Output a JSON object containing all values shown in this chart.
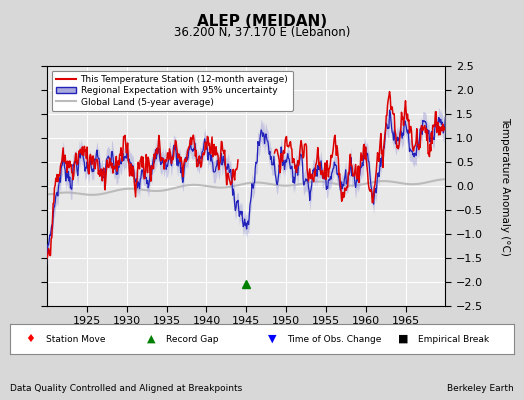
{
  "title": "ALEP (MEIDAN)",
  "subtitle": "36.200 N, 37.170 E (Lebanon)",
  "ylabel": "Temperature Anomaly (°C)",
  "footer_left": "Data Quality Controlled and Aligned at Breakpoints",
  "footer_right": "Berkeley Earth",
  "xlim": [
    1920,
    1970
  ],
  "ylim": [
    -2.5,
    2.5
  ],
  "yticks": [
    -2.5,
    -2,
    -1.5,
    -1,
    -0.5,
    0,
    0.5,
    1,
    1.5,
    2,
    2.5
  ],
  "xticks": [
    1925,
    1930,
    1935,
    1940,
    1945,
    1950,
    1955,
    1960,
    1965
  ],
  "bg_color": "#d8d8d8",
  "plot_bg_color": "#e8e8e8",
  "regional_color": "#2222bb",
  "regional_fill_color": "#aaaadd",
  "station_color": "#dd0000",
  "global_color": "#bbbbbb",
  "record_gap_x": 1945,
  "record_gap_y": -2.05,
  "legend_label_station": "This Temperature Station (12-month average)",
  "legend_label_regional": "Regional Expectation with 95% uncertainty",
  "legend_label_global": "Global Land (5-year average)"
}
